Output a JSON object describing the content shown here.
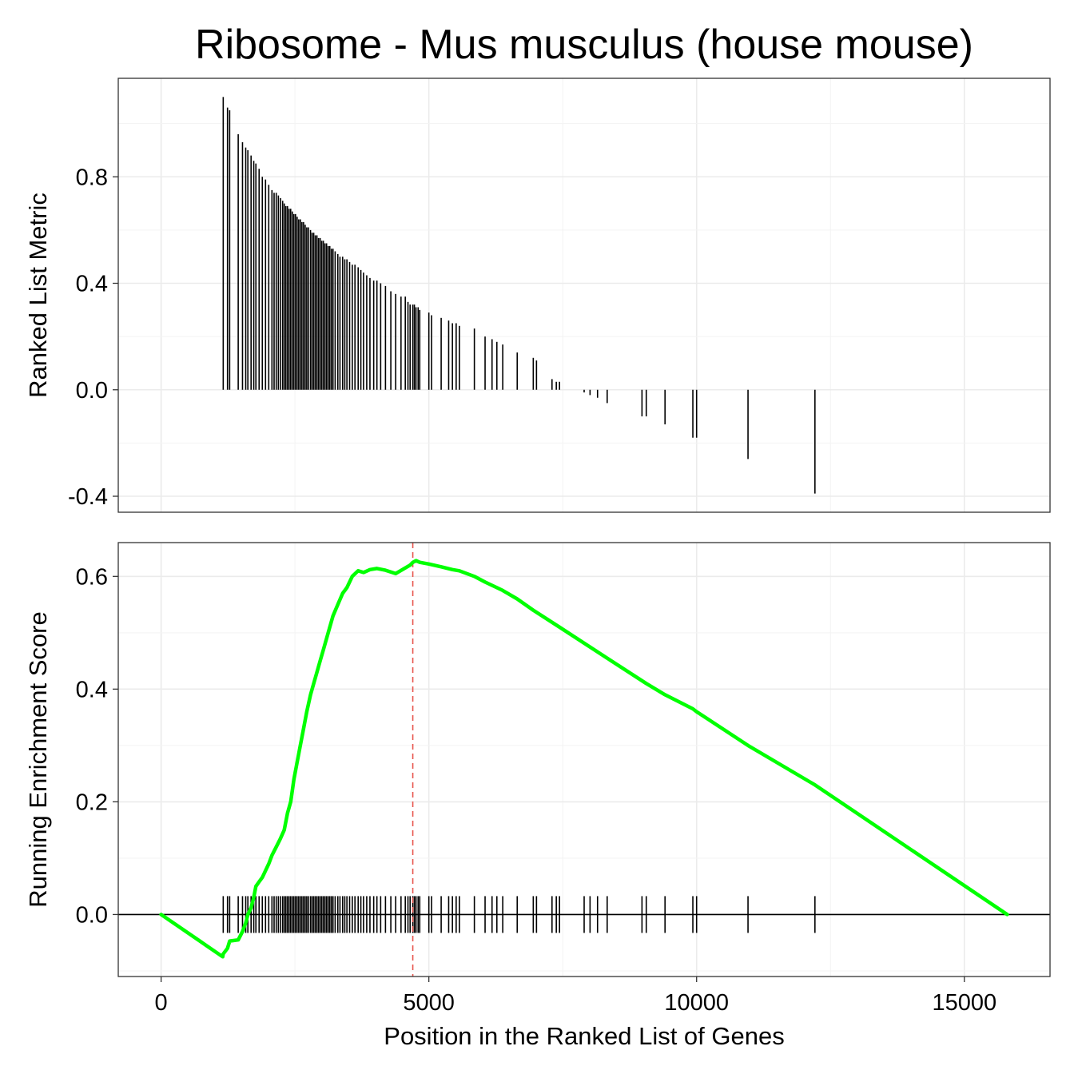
{
  "chart_data": {
    "type": "line",
    "title": "Ribosome - Mus musculus (house mouse)",
    "xlabel": "Position in the Ranked List of Genes",
    "x_ticks": [
      0,
      5000,
      10000,
      15000
    ],
    "x_tick_labels": [
      "0",
      "5000",
      "10000",
      "15000"
    ],
    "xlim": [
      -800,
      16600
    ],
    "panels": [
      {
        "name": "ranked-list-metric",
        "type": "bar",
        "ylabel": "Ranked List Metric",
        "ylim": [
          -0.46,
          1.17
        ],
        "y_ticks": [
          -0.4,
          0.0,
          0.4,
          0.8
        ],
        "y_tick_labels": [
          "-0.4",
          "0.0",
          "0.4",
          "0.8"
        ],
        "hits": [
          [
            1160,
            1.1
          ],
          [
            1240,
            1.06
          ],
          [
            1280,
            1.05
          ],
          [
            1440,
            0.96
          ],
          [
            1520,
            0.93
          ],
          [
            1580,
            0.91
          ],
          [
            1620,
            0.9
          ],
          [
            1680,
            0.88
          ],
          [
            1730,
            0.86
          ],
          [
            1770,
            0.85
          ],
          [
            1830,
            0.83
          ],
          [
            1890,
            0.8
          ],
          [
            1950,
            0.79
          ],
          [
            2010,
            0.77
          ],
          [
            2070,
            0.75
          ],
          [
            2110,
            0.74
          ],
          [
            2150,
            0.74
          ],
          [
            2190,
            0.73
          ],
          [
            2230,
            0.72
          ],
          [
            2270,
            0.71
          ],
          [
            2300,
            0.7
          ],
          [
            2330,
            0.69
          ],
          [
            2360,
            0.69
          ],
          [
            2390,
            0.68
          ],
          [
            2420,
            0.68
          ],
          [
            2450,
            0.67
          ],
          [
            2480,
            0.66
          ],
          [
            2510,
            0.66
          ],
          [
            2540,
            0.65
          ],
          [
            2570,
            0.64
          ],
          [
            2600,
            0.64
          ],
          [
            2630,
            0.63
          ],
          [
            2660,
            0.63
          ],
          [
            2690,
            0.62
          ],
          [
            2720,
            0.61
          ],
          [
            2750,
            0.61
          ],
          [
            2790,
            0.6
          ],
          [
            2820,
            0.59
          ],
          [
            2850,
            0.59
          ],
          [
            2880,
            0.58
          ],
          [
            2910,
            0.58
          ],
          [
            2940,
            0.57
          ],
          [
            2970,
            0.57
          ],
          [
            3000,
            0.56
          ],
          [
            3030,
            0.56
          ],
          [
            3060,
            0.55
          ],
          [
            3090,
            0.55
          ],
          [
            3120,
            0.54
          ],
          [
            3150,
            0.54
          ],
          [
            3180,
            0.53
          ],
          [
            3210,
            0.53
          ],
          [
            3250,
            0.52
          ],
          [
            3300,
            0.51
          ],
          [
            3340,
            0.5
          ],
          [
            3390,
            0.5
          ],
          [
            3430,
            0.49
          ],
          [
            3470,
            0.49
          ],
          [
            3520,
            0.48
          ],
          [
            3570,
            0.47
          ],
          [
            3620,
            0.47
          ],
          [
            3680,
            0.46
          ],
          [
            3730,
            0.45
          ],
          [
            3780,
            0.44
          ],
          [
            3840,
            0.43
          ],
          [
            3900,
            0.42
          ],
          [
            3970,
            0.41
          ],
          [
            4030,
            0.41
          ],
          [
            4100,
            0.4
          ],
          [
            4190,
            0.39
          ],
          [
            4290,
            0.37
          ],
          [
            4380,
            0.36
          ],
          [
            4480,
            0.35
          ],
          [
            4560,
            0.35
          ],
          [
            4610,
            0.33
          ],
          [
            4650,
            0.32
          ],
          [
            4700,
            0.32
          ],
          [
            4730,
            0.32
          ],
          [
            4760,
            0.31
          ],
          [
            4800,
            0.31
          ],
          [
            4830,
            0.3
          ],
          [
            5000,
            0.29
          ],
          [
            5050,
            0.28
          ],
          [
            5230,
            0.27
          ],
          [
            5370,
            0.26
          ],
          [
            5440,
            0.25
          ],
          [
            5510,
            0.25
          ],
          [
            5570,
            0.24
          ],
          [
            5850,
            0.23
          ],
          [
            6050,
            0.2
          ],
          [
            6180,
            0.19
          ],
          [
            6270,
            0.18
          ],
          [
            6380,
            0.17
          ],
          [
            6650,
            0.14
          ],
          [
            6950,
            0.12
          ],
          [
            7010,
            0.11
          ],
          [
            7300,
            0.04
          ],
          [
            7380,
            0.03
          ],
          [
            7440,
            0.03
          ],
          [
            7900,
            -0.01
          ],
          [
            8010,
            -0.02
          ],
          [
            8150,
            -0.03
          ],
          [
            8330,
            -0.05
          ],
          [
            8980,
            -0.1
          ],
          [
            9060,
            -0.1
          ],
          [
            9410,
            -0.13
          ],
          [
            9930,
            -0.18
          ],
          [
            10000,
            -0.18
          ],
          [
            10960,
            -0.26
          ],
          [
            12210,
            -0.39
          ]
        ]
      },
      {
        "name": "running-enrichment-score",
        "type": "line",
        "ylabel": "Running Enrichment Score",
        "ylim": [
          -0.11,
          0.66
        ],
        "y_ticks": [
          0.0,
          0.2,
          0.4,
          0.6
        ],
        "y_tick_labels": [
          "0.0",
          "0.2",
          "0.4",
          "0.6"
        ],
        "series": [
          {
            "name": "Running Enrichment Score",
            "color": "#00ff00",
            "x": [
              0,
              1150,
              1160,
              1240,
              1280,
              1440,
              1520,
              1580,
              1620,
              1680,
              1730,
              1770,
              1830,
              1890,
              1950,
              2010,
              2070,
              2150,
              2230,
              2300,
              2360,
              2420,
              2480,
              2540,
              2600,
              2660,
              2720,
              2790,
              2850,
              2910,
              2970,
              3030,
              3090,
              3150,
              3210,
              3300,
              3390,
              3470,
              3570,
              3680,
              3780,
              3900,
              4030,
              4190,
              4380,
              4560,
              4650,
              4700,
              4760,
              4830,
              5000,
              5230,
              5440,
              5570,
              5850,
              6050,
              6270,
              6380,
              6650,
              6950,
              7440,
              8330,
              9060,
              9410,
              9930,
              10000,
              10960,
              12210,
              15800
            ],
            "values": [
              0.0,
              -0.075,
              -0.07,
              -0.06,
              -0.047,
              -0.045,
              -0.03,
              -0.015,
              0.0,
              0.012,
              0.03,
              0.05,
              0.058,
              0.066,
              0.078,
              0.09,
              0.105,
              0.12,
              0.135,
              0.15,
              0.18,
              0.2,
              0.24,
              0.27,
              0.3,
              0.33,
              0.36,
              0.39,
              0.41,
              0.43,
              0.45,
              0.47,
              0.49,
              0.51,
              0.53,
              0.55,
              0.57,
              0.58,
              0.6,
              0.61,
              0.607,
              0.612,
              0.614,
              0.611,
              0.605,
              0.615,
              0.62,
              0.625,
              0.628,
              0.625,
              0.622,
              0.617,
              0.612,
              0.61,
              0.6,
              0.59,
              0.58,
              0.575,
              0.56,
              0.54,
              0.51,
              0.455,
              0.41,
              0.39,
              0.365,
              0.36,
              0.3,
              0.23,
              0.0
            ]
          }
        ],
        "peak_x": 4700,
        "peak_marker_color": "#e8554d",
        "zero_line": 0.0
      }
    ]
  }
}
